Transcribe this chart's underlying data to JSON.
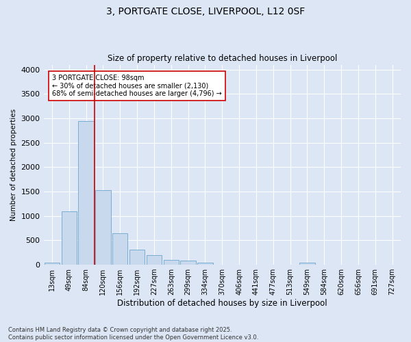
{
  "title1": "3, PORTGATE CLOSE, LIVERPOOL, L12 0SF",
  "title2": "Size of property relative to detached houses in Liverpool",
  "xlabel": "Distribution of detached houses by size in Liverpool",
  "ylabel": "Number of detached properties",
  "categories": [
    "13sqm",
    "49sqm",
    "84sqm",
    "120sqm",
    "156sqm",
    "192sqm",
    "227sqm",
    "263sqm",
    "299sqm",
    "334sqm",
    "370sqm",
    "406sqm",
    "441sqm",
    "477sqm",
    "513sqm",
    "549sqm",
    "584sqm",
    "620sqm",
    "656sqm",
    "691sqm",
    "727sqm"
  ],
  "values": [
    50,
    1100,
    2950,
    1530,
    650,
    315,
    200,
    100,
    90,
    50,
    5,
    0,
    0,
    0,
    0,
    50,
    0,
    0,
    0,
    0,
    0
  ],
  "bar_color": "#c9d9ed",
  "bar_edge_color": "#7aadd4",
  "vline_x": 2.5,
  "vline_color": "#cc0000",
  "annotation_text": "3 PORTGATE CLOSE: 98sqm\n← 30% of detached houses are smaller (2,130)\n68% of semi-detached houses are larger (4,796) →",
  "annotation_box_color": "#ffffff",
  "annotation_box_edge": "#cc0000",
  "ylim": [
    0,
    4100
  ],
  "yticks": [
    0,
    500,
    1000,
    1500,
    2000,
    2500,
    3000,
    3500,
    4000
  ],
  "footer": "Contains HM Land Registry data © Crown copyright and database right 2025.\nContains public sector information licensed under the Open Government Licence v3.0.",
  "background_color": "#dce6f5",
  "plot_bg_color": "#dce6f5",
  "grid_color": "#ffffff"
}
